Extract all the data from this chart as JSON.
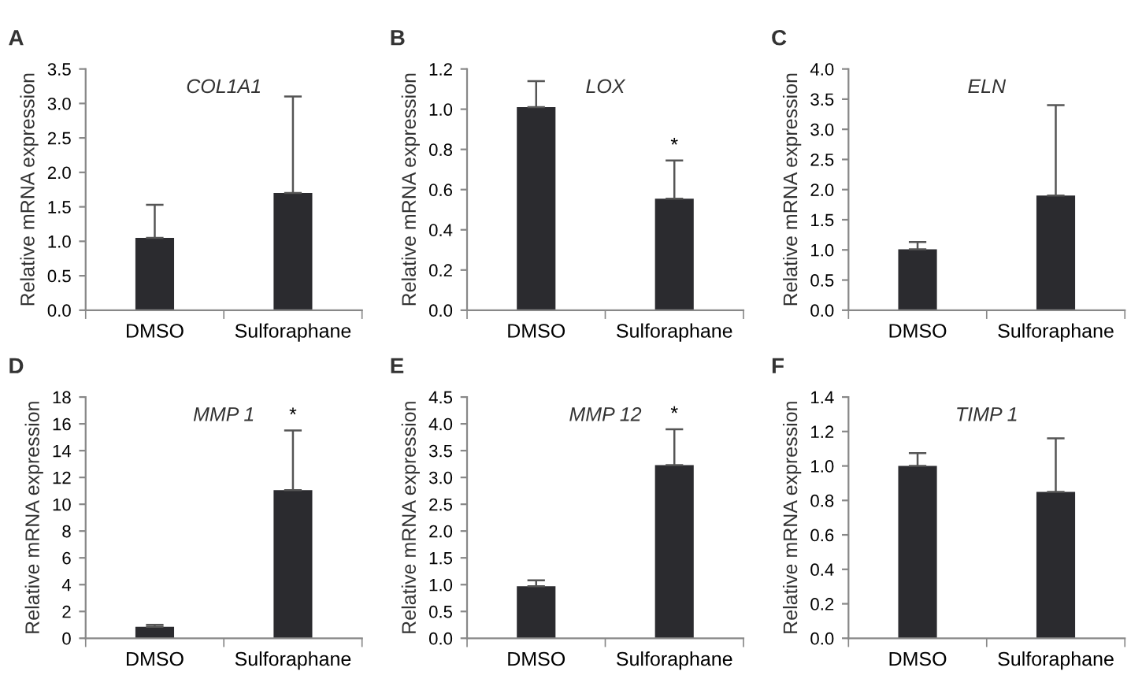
{
  "chart_data": [
    {
      "type": "bar",
      "title": "COL1A1",
      "ylabel": "Relative mRNA expression",
      "categories": [
        "DMSO",
        "Sulforaphane"
      ],
      "values": [
        1.05,
        1.7
      ],
      "errors": [
        [
          1.05,
          1.53
        ],
        [
          1.7,
          3.1
        ]
      ],
      "color": "#2b2b2f",
      "ylim": [
        0,
        3.5
      ],
      "yticks": [
        {
          "value": 0,
          "label": "0.0"
        },
        0.5,
        {
          "value": 1,
          "label": "1.0"
        },
        1.5,
        {
          "value": 2,
          "label": "2.0"
        },
        2.5,
        {
          "value": 3,
          "label": "3.0"
        },
        3.5
      ],
      "annotations": [
        "A"
      ]
    },
    {
      "type": "bar",
      "title": "LOX",
      "ylabel": "Relative mRNA expression",
      "categories": [
        "DMSO",
        "Sulforaphane"
      ],
      "values": [
        1.01,
        0.555
      ],
      "errors": [
        [
          1.01,
          1.14
        ],
        [
          0.555,
          0.745
        ]
      ],
      "color": "#2b2b2f",
      "ylim": [
        0,
        1.2
      ],
      "yticks": [
        {
          "value": 0,
          "label": "0.0"
        },
        0.2,
        0.4,
        0.6,
        0.8,
        {
          "value": 1,
          "label": "1.0"
        },
        1.2
      ],
      "annotations": [
        "B",
        {
          "text": "*",
          "x": "Sulforaphane",
          "y": 0.77
        }
      ]
    },
    {
      "type": "bar",
      "title": "ELN",
      "ylabel": "Relative mRNA expression",
      "categories": [
        "DMSO",
        "Sulforaphane"
      ],
      "values": [
        1.01,
        1.9
      ],
      "errors": [
        [
          1.01,
          1.13
        ],
        [
          1.9,
          3.4
        ]
      ],
      "color": "#2b2b2f",
      "ylim": [
        0,
        4
      ],
      "yticks": [
        {
          "value": 0,
          "label": "0.0"
        },
        0.5,
        {
          "value": 1,
          "label": "1.0"
        },
        1.5,
        {
          "value": 2,
          "label": "2.0"
        },
        2.5,
        {
          "value": 3,
          "label": "3.0"
        },
        3.5,
        {
          "value": 4,
          "label": "4.0"
        }
      ],
      "annotations": [
        "C"
      ]
    },
    {
      "type": "bar",
      "title": "MMP 1",
      "ylabel": "Relative mRNA expression",
      "categories": [
        "DMSO",
        "Sulforaphane"
      ],
      "values": [
        0.85,
        11.05
      ],
      "errors": [
        [
          0.85,
          1.0
        ],
        [
          11.05,
          15.5
        ]
      ],
      "color": "#2b2b2f",
      "ylim": [
        0,
        18
      ],
      "yticks": [
        0,
        2,
        4,
        6,
        8,
        10,
        12,
        14,
        16,
        18
      ],
      "annotations": [
        "D",
        {
          "text": "*",
          "x": "Sulforaphane",
          "y": 15.9
        }
      ]
    },
    {
      "type": "bar",
      "title": "MMP 12",
      "ylabel": "Relative mRNA expression",
      "categories": [
        "DMSO",
        "Sulforaphane"
      ],
      "values": [
        0.97,
        3.23
      ],
      "errors": [
        [
          0.97,
          1.08
        ],
        [
          3.23,
          3.9
        ]
      ],
      "color": "#2b2b2f",
      "ylim": [
        0,
        4.5
      ],
      "yticks": [
        {
          "value": 0,
          "label": "0.0"
        },
        0.5,
        {
          "value": 1,
          "label": "1.0"
        },
        1.5,
        {
          "value": 2,
          "label": "2.0"
        },
        2.5,
        {
          "value": 3,
          "label": "3.0"
        },
        3.5,
        {
          "value": 4,
          "label": "4.0"
        },
        4.5
      ],
      "annotations": [
        "E",
        {
          "text": "*",
          "x": "Sulforaphane",
          "y": 4.0
        }
      ]
    },
    {
      "type": "bar",
      "title": "TIMP 1",
      "ylabel": "Relative mRNA expression",
      "categories": [
        "DMSO",
        "Sulforaphane"
      ],
      "values": [
        1.0,
        0.85
      ],
      "errors": [
        [
          1.0,
          1.075
        ],
        [
          0.85,
          1.16
        ]
      ],
      "color": "#2b2b2f",
      "ylim": [
        0,
        1.4
      ],
      "yticks": [
        {
          "value": 0,
          "label": "0.0"
        },
        0.2,
        0.4,
        0.6,
        0.8,
        {
          "value": 1,
          "label": "1.0"
        },
        1.2,
        1.4
      ],
      "annotations": [
        "F"
      ]
    }
  ]
}
